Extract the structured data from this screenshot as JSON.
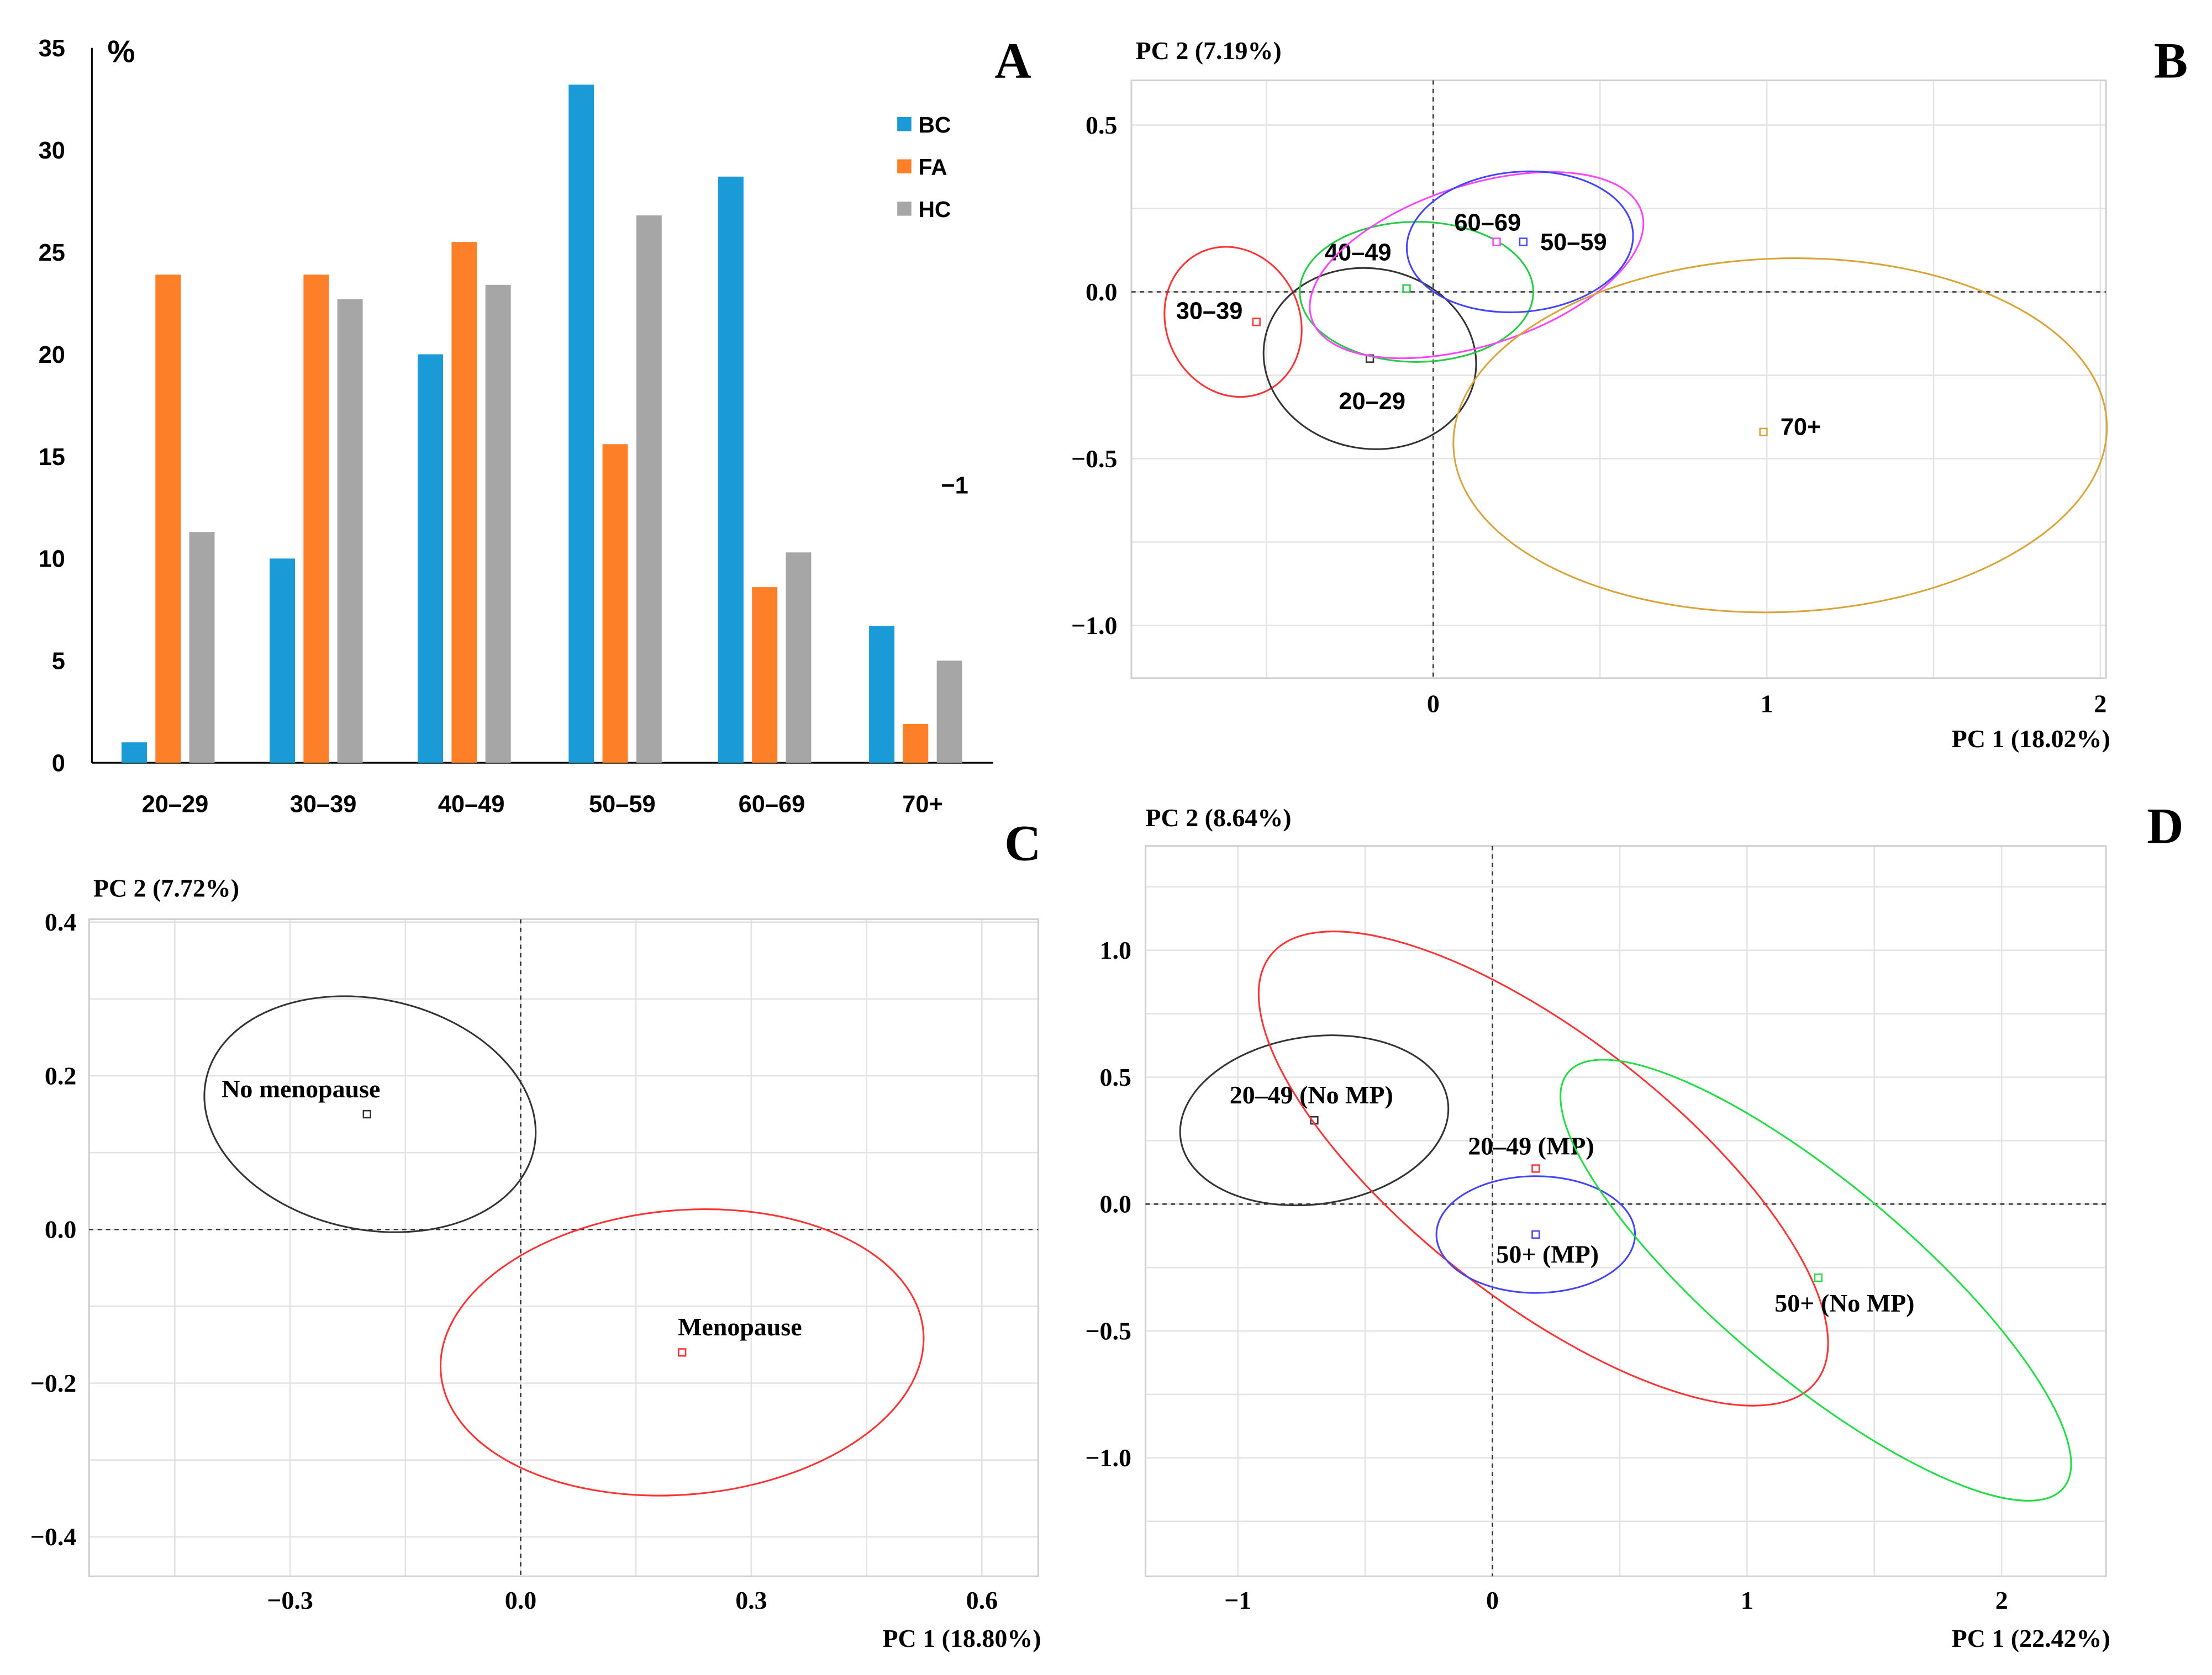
{
  "chart_data": [
    {
      "panel": "A",
      "type": "bar",
      "ylabel": "%",
      "ylim": [
        0,
        35
      ],
      "yticks": [
        "0",
        "5",
        "10",
        "15",
        "20",
        "25",
        "30",
        "35"
      ],
      "categories": [
        "20–29",
        "30–39",
        "40–49",
        "50–59",
        "60–69",
        "70+"
      ],
      "series": [
        {
          "name": "BC",
          "color": "#1a9ad6",
          "values": [
            1.0,
            10.0,
            20.0,
            33.2,
            28.7,
            6.7
          ]
        },
        {
          "name": "FA",
          "color": "#fd8029",
          "values": [
            23.9,
            23.9,
            25.5,
            15.6,
            8.6,
            1.9
          ]
        },
        {
          "name": "HC",
          "color": "#a6a6a6",
          "values": [
            11.3,
            22.7,
            23.4,
            26.8,
            10.3,
            5.0
          ]
        }
      ],
      "legend_position": "top-right",
      "stray_text": "−1"
    },
    {
      "panel": "B",
      "type": "scatter",
      "xlabel": "PC 1 (18.02%)",
      "ylabel": "PC 2 (7.19%)",
      "xlim": [
        -0.9,
        2.02
      ],
      "ylim": [
        -1.16,
        0.63
      ],
      "xticks": [
        {
          "v": 0,
          "t": "0"
        },
        {
          "v": 1,
          "t": "1"
        },
        {
          "v": 2,
          "t": "2"
        }
      ],
      "yticks": [
        {
          "v": 0.5,
          "t": "0.5"
        },
        {
          "v": 0,
          "t": "0.0"
        },
        {
          "v": -0.5,
          "t": "−0.5"
        },
        {
          "v": -1,
          "t": "−1.0"
        }
      ],
      "xgrid_step": 0.5,
      "ygrid_step": 0.25,
      "groups": [
        {
          "label": "30–39",
          "color": "#ff3333",
          "x": -0.53,
          "y": -0.09,
          "ellipse": {
            "cx": -0.6,
            "cy": -0.09,
            "rx": 0.23,
            "ry": 0.2,
            "angle": -65
          }
        },
        {
          "label": "20–29",
          "color": "#333333",
          "x": -0.19,
          "y": -0.2,
          "ellipse": {
            "cx": -0.19,
            "cy": -0.2,
            "rx": 0.32,
            "ry": 0.27,
            "angle": -10
          }
        },
        {
          "label": "40–49",
          "color": "#22cc44",
          "x": -0.08,
          "y": 0.01,
          "ellipse": {
            "cx": -0.05,
            "cy": 0.0,
            "rx": 0.35,
            "ry": 0.21,
            "angle": 0
          }
        },
        {
          "label": "60–69",
          "color": "#ff44ff",
          "x": 0.19,
          "y": 0.15,
          "ellipse": {
            "cx": 0.13,
            "cy": 0.08,
            "rx": 0.52,
            "ry": 0.24,
            "angle": 18
          }
        },
        {
          "label": "50–59",
          "color": "#4444ff",
          "x": 0.27,
          "y": 0.15,
          "ellipse": {
            "cx": 0.26,
            "cy": 0.15,
            "rx": 0.34,
            "ry": 0.21,
            "angle": 5
          }
        },
        {
          "label": "70+",
          "color": "#d9a53b",
          "x": 0.99,
          "y": -0.42,
          "ellipse": {
            "cx": 1.04,
            "cy": -0.43,
            "rx": 0.98,
            "ry": 0.53,
            "angle": 2
          }
        }
      ]
    },
    {
      "panel": "C",
      "type": "scatter",
      "xlabel": "PC 1 (18.80%)",
      "ylabel": "PC 2 (7.72%)",
      "xlim": [
        -0.56,
        0.68
      ],
      "ylim": [
        -0.45,
        0.4
      ],
      "xticks": [
        {
          "v": -0.3,
          "t": "−0.3"
        },
        {
          "v": 0,
          "t": "0.0"
        },
        {
          "v": 0.3,
          "t": "0.3"
        },
        {
          "v": 0.6,
          "t": "0.6"
        }
      ],
      "yticks": [
        {
          "v": 0.4,
          "t": "0.4"
        },
        {
          "v": 0.2,
          "t": "0.2"
        },
        {
          "v": 0,
          "t": "0.0"
        },
        {
          "v": -0.2,
          "t": "−0.2"
        },
        {
          "v": -0.4,
          "t": "−0.4"
        }
      ],
      "xgrid_step": 0.15,
      "ygrid_step": 0.1,
      "groups": [
        {
          "label": "No menopause",
          "color": "#333333",
          "x": -0.2,
          "y": 0.15,
          "ellipse": {
            "cx": -0.196,
            "cy": 0.15,
            "rx": 0.218,
            "ry": 0.15,
            "angle": -12
          }
        },
        {
          "label": "Menopause",
          "color": "#ff3333",
          "x": 0.21,
          "y": -0.16,
          "ellipse": {
            "cx": 0.21,
            "cy": -0.16,
            "rx": 0.315,
            "ry": 0.185,
            "angle": 5
          }
        }
      ]
    },
    {
      "panel": "D",
      "type": "scatter",
      "xlabel": "PC 1 (22.42%)",
      "ylabel": "PC 2 (8.64%)",
      "xlim": [
        -1.36,
        2.4
      ],
      "ylim": [
        -1.46,
        1.41
      ],
      "xticks": [
        {
          "v": -1,
          "t": "−1"
        },
        {
          "v": 0,
          "t": "0"
        },
        {
          "v": 1,
          "t": "1"
        },
        {
          "v": 2,
          "t": "2"
        }
      ],
      "yticks": [
        {
          "v": 1,
          "t": "1.0"
        },
        {
          "v": 0.5,
          "t": "0.5"
        },
        {
          "v": 0,
          "t": "0.0"
        },
        {
          "v": -0.5,
          "t": "−0.5"
        },
        {
          "v": -1,
          "t": "−1.0"
        }
      ],
      "xgrid_step": 0.5,
      "ygrid_step": 0.25,
      "groups": [
        {
          "label": "20–49 (No MP)",
          "color": "#333333",
          "x": -0.7,
          "y": 0.33,
          "ellipse": {
            "cx": -0.7,
            "cy": 0.33,
            "rx": 0.53,
            "ry": 0.33,
            "angle": 8
          }
        },
        {
          "label": "20–49 (MP)",
          "color": "#ff3333",
          "x": 0.17,
          "y": 0.14,
          "ellipse": {
            "cx": 0.2,
            "cy": 0.14,
            "rx": 1.36,
            "ry": 0.52,
            "angle": -38
          }
        },
        {
          "label": "50+ (MP)",
          "color": "#4444ff",
          "x": 0.17,
          "y": -0.12,
          "ellipse": {
            "cx": 0.17,
            "cy": -0.12,
            "rx": 0.39,
            "ry": 0.23,
            "angle": 0
          }
        },
        {
          "label": "50+ (No MP)",
          "color": "#22dd44",
          "x": 1.28,
          "y": -0.29,
          "ellipse": {
            "cx": 1.27,
            "cy": -0.3,
            "rx": 1.27,
            "ry": 0.38,
            "angle": -40
          }
        }
      ]
    }
  ]
}
